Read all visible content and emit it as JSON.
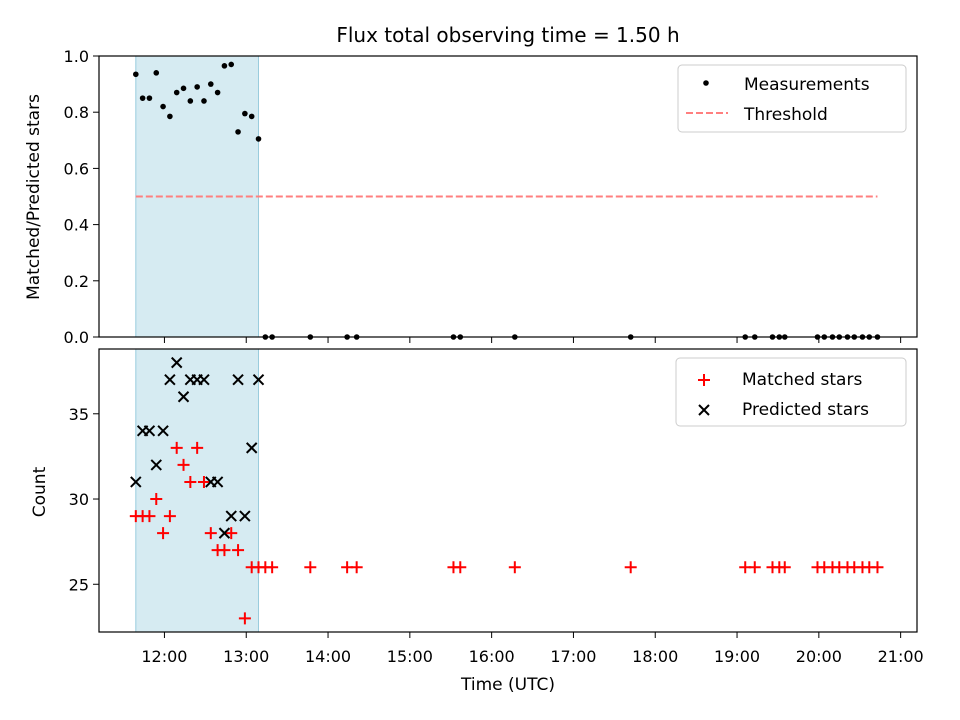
{
  "chart_data": [
    {
      "type": "scatter",
      "title": "Flux total observing time = 1.50 h",
      "xlabel": "",
      "ylabel": "Matched/Predicted stars",
      "xlim": [
        "11:12",
        "21:12"
      ],
      "ylim": [
        0.0,
        1.0
      ],
      "yticks": [
        "0.0",
        "0.2",
        "0.4",
        "0.6",
        "0.8",
        "1.0"
      ],
      "shaded_span": [
        "11:39",
        "13:09"
      ],
      "series": [
        {
          "name": "Measurements",
          "color": "#000000",
          "marker": "dot",
          "points": [
            [
              "11:39",
              0.935
            ],
            [
              "11:44",
              0.85
            ],
            [
              "11:49",
              0.85
            ],
            [
              "11:54",
              0.94
            ],
            [
              "11:59",
              0.82
            ],
            [
              "12:04",
              0.785
            ],
            [
              "12:09",
              0.87
            ],
            [
              "12:14",
              0.885
            ],
            [
              "12:19",
              0.84
            ],
            [
              "12:24",
              0.89
            ],
            [
              "12:29",
              0.84
            ],
            [
              "12:34",
              0.9
            ],
            [
              "12:39",
              0.87
            ],
            [
              "12:44",
              0.965
            ],
            [
              "12:49",
              0.97
            ],
            [
              "12:54",
              0.73
            ],
            [
              "12:59",
              0.795
            ],
            [
              "13:04",
              0.785
            ],
            [
              "13:09",
              0.705
            ],
            [
              "13:14",
              0.0
            ],
            [
              "13:19",
              0.0
            ],
            [
              "13:47",
              0.0
            ],
            [
              "14:14",
              0.0
            ],
            [
              "14:21",
              0.0
            ],
            [
              "15:32",
              0.0
            ],
            [
              "15:37",
              0.0
            ],
            [
              "16:17",
              0.0
            ],
            [
              "17:42",
              0.0
            ],
            [
              "19:06",
              0.0
            ],
            [
              "19:13",
              0.0
            ],
            [
              "19:26",
              0.0
            ],
            [
              "19:31",
              0.0
            ],
            [
              "19:35",
              0.0
            ],
            [
              "19:59",
              0.0
            ],
            [
              "20:04",
              0.0
            ],
            [
              "20:10",
              0.0
            ],
            [
              "20:15",
              0.0
            ],
            [
              "20:21",
              0.0
            ],
            [
              "20:26",
              0.0
            ],
            [
              "20:32",
              0.0
            ],
            [
              "20:37",
              0.0
            ],
            [
              "20:43",
              0.0
            ]
          ]
        },
        {
          "name": "Threshold",
          "color": "#ff7f7f",
          "line": "dashed",
          "points": [
            [
              "11:39",
              0.5
            ],
            [
              "20:43",
              0.5
            ]
          ]
        }
      ],
      "legend": [
        "Measurements",
        "Threshold"
      ],
      "legend_position": "top-right"
    },
    {
      "type": "scatter",
      "xlabel": "Time (UTC)",
      "ylabel": "Count",
      "xlim": [
        "11:12",
        "21:12"
      ],
      "ylim": [
        22.2,
        38.8
      ],
      "xticks": [
        "12:00",
        "13:00",
        "14:00",
        "15:00",
        "16:00",
        "17:00",
        "18:00",
        "19:00",
        "20:00",
        "21:00"
      ],
      "yticks": [
        "25",
        "30",
        "35"
      ],
      "shaded_span": [
        "11:39",
        "13:09"
      ],
      "series": [
        {
          "name": "Matched stars",
          "color": "#ff0000",
          "marker": "plus",
          "points": [
            [
              "11:39",
              29
            ],
            [
              "11:44",
              29
            ],
            [
              "11:49",
              29
            ],
            [
              "11:54",
              30
            ],
            [
              "11:59",
              28
            ],
            [
              "12:04",
              29
            ],
            [
              "12:09",
              33
            ],
            [
              "12:14",
              32
            ],
            [
              "12:19",
              31
            ],
            [
              "12:24",
              33
            ],
            [
              "12:29",
              31
            ],
            [
              "12:34",
              28
            ],
            [
              "12:39",
              27
            ],
            [
              "12:44",
              27
            ],
            [
              "12:49",
              28
            ],
            [
              "12:54",
              27
            ],
            [
              "12:59",
              23
            ],
            [
              "13:04",
              26
            ],
            [
              "13:09",
              26
            ],
            [
              "13:14",
              26
            ],
            [
              "13:19",
              26
            ],
            [
              "13:47",
              26
            ],
            [
              "14:14",
              26
            ],
            [
              "14:21",
              26
            ],
            [
              "15:32",
              26
            ],
            [
              "15:37",
              26
            ],
            [
              "16:17",
              26
            ],
            [
              "17:42",
              26
            ],
            [
              "19:06",
              26
            ],
            [
              "19:13",
              26
            ],
            [
              "19:26",
              26
            ],
            [
              "19:31",
              26
            ],
            [
              "19:35",
              26
            ],
            [
              "19:59",
              26
            ],
            [
              "20:04",
              26
            ],
            [
              "20:10",
              26
            ],
            [
              "20:15",
              26
            ],
            [
              "20:21",
              26
            ],
            [
              "20:26",
              26
            ],
            [
              "20:32",
              26
            ],
            [
              "20:37",
              26
            ],
            [
              "20:43",
              26
            ]
          ]
        },
        {
          "name": "Predicted stars",
          "color": "#000000",
          "marker": "x",
          "points": [
            [
              "11:39",
              31
            ],
            [
              "11:44",
              34
            ],
            [
              "11:49",
              34
            ],
            [
              "11:54",
              32
            ],
            [
              "11:59",
              34
            ],
            [
              "12:04",
              37
            ],
            [
              "12:09",
              38
            ],
            [
              "12:14",
              36
            ],
            [
              "12:19",
              37
            ],
            [
              "12:24",
              37
            ],
            [
              "12:29",
              37
            ],
            [
              "12:34",
              31
            ],
            [
              "12:39",
              31
            ],
            [
              "12:44",
              28
            ],
            [
              "12:49",
              29
            ],
            [
              "12:54",
              37
            ],
            [
              "12:59",
              29
            ],
            [
              "13:04",
              33
            ],
            [
              "13:09",
              37
            ]
          ]
        }
      ],
      "legend": [
        "Matched stars",
        "Predicted stars"
      ],
      "legend_position": "top-right"
    }
  ]
}
